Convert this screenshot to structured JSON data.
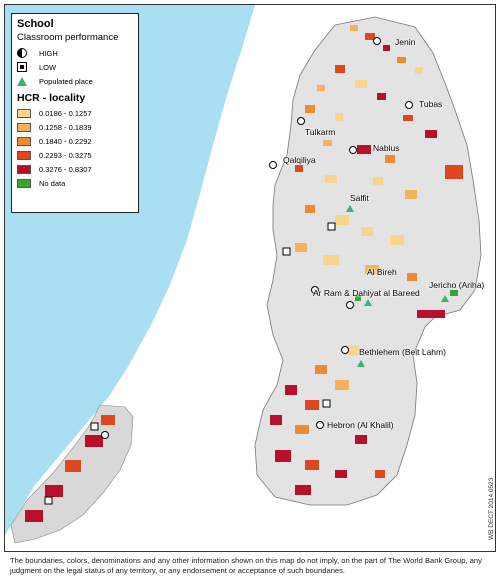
{
  "legend": {
    "title": "School",
    "subtitle": "Classroom performance",
    "items_school": [
      {
        "label": "HIGH",
        "icon": "half-filled-circle-icon"
      },
      {
        "label": "LOW",
        "icon": "square-dot-icon"
      },
      {
        "label": "Populated place",
        "icon": "green-triangle-icon"
      }
    ],
    "title2": "HCR - locality",
    "classes": [
      {
        "label": "0.0186 - 0.1257",
        "color": "#f7d58c"
      },
      {
        "label": "0.1258 - 0.1839",
        "color": "#f4b25a"
      },
      {
        "label": "0.1840 - 0.2292",
        "color": "#ee8a2f"
      },
      {
        "label": "0.2293 - 0.3275",
        "color": "#e0471f"
      },
      {
        "label": "0.3276 - 0.8307",
        "color": "#b8102a"
      },
      {
        "label": "No data",
        "color": "#3aa535"
      }
    ]
  },
  "cities": [
    {
      "name": "Jenin"
    },
    {
      "name": "Tubas"
    },
    {
      "name": "Tulkarm"
    },
    {
      "name": "Nablus"
    },
    {
      "name": "Qalqiliya"
    },
    {
      "name": "Salfit"
    },
    {
      "name": "Al Bireh"
    },
    {
      "name": "Jericho (Ariha)"
    },
    {
      "name": "Ar Ram & Dahiyat al Bareed"
    },
    {
      "name": "Bethlehem (Beit Lahm)"
    },
    {
      "name": "Hebron (Al Khalil)"
    }
  ],
  "colors": {
    "sea": "#a9dff2",
    "land": "#e3e3e3",
    "boundary": "#ffffff"
  },
  "credit": "WB DECT 2014 0523",
  "disclaimer": "The boundaries, colors, denominations and any other information shown on this map do not imply, on the part of The World Bank Group, any judgment on the legal status of any territory, or any endorsement or acceptance of such boundaries."
}
